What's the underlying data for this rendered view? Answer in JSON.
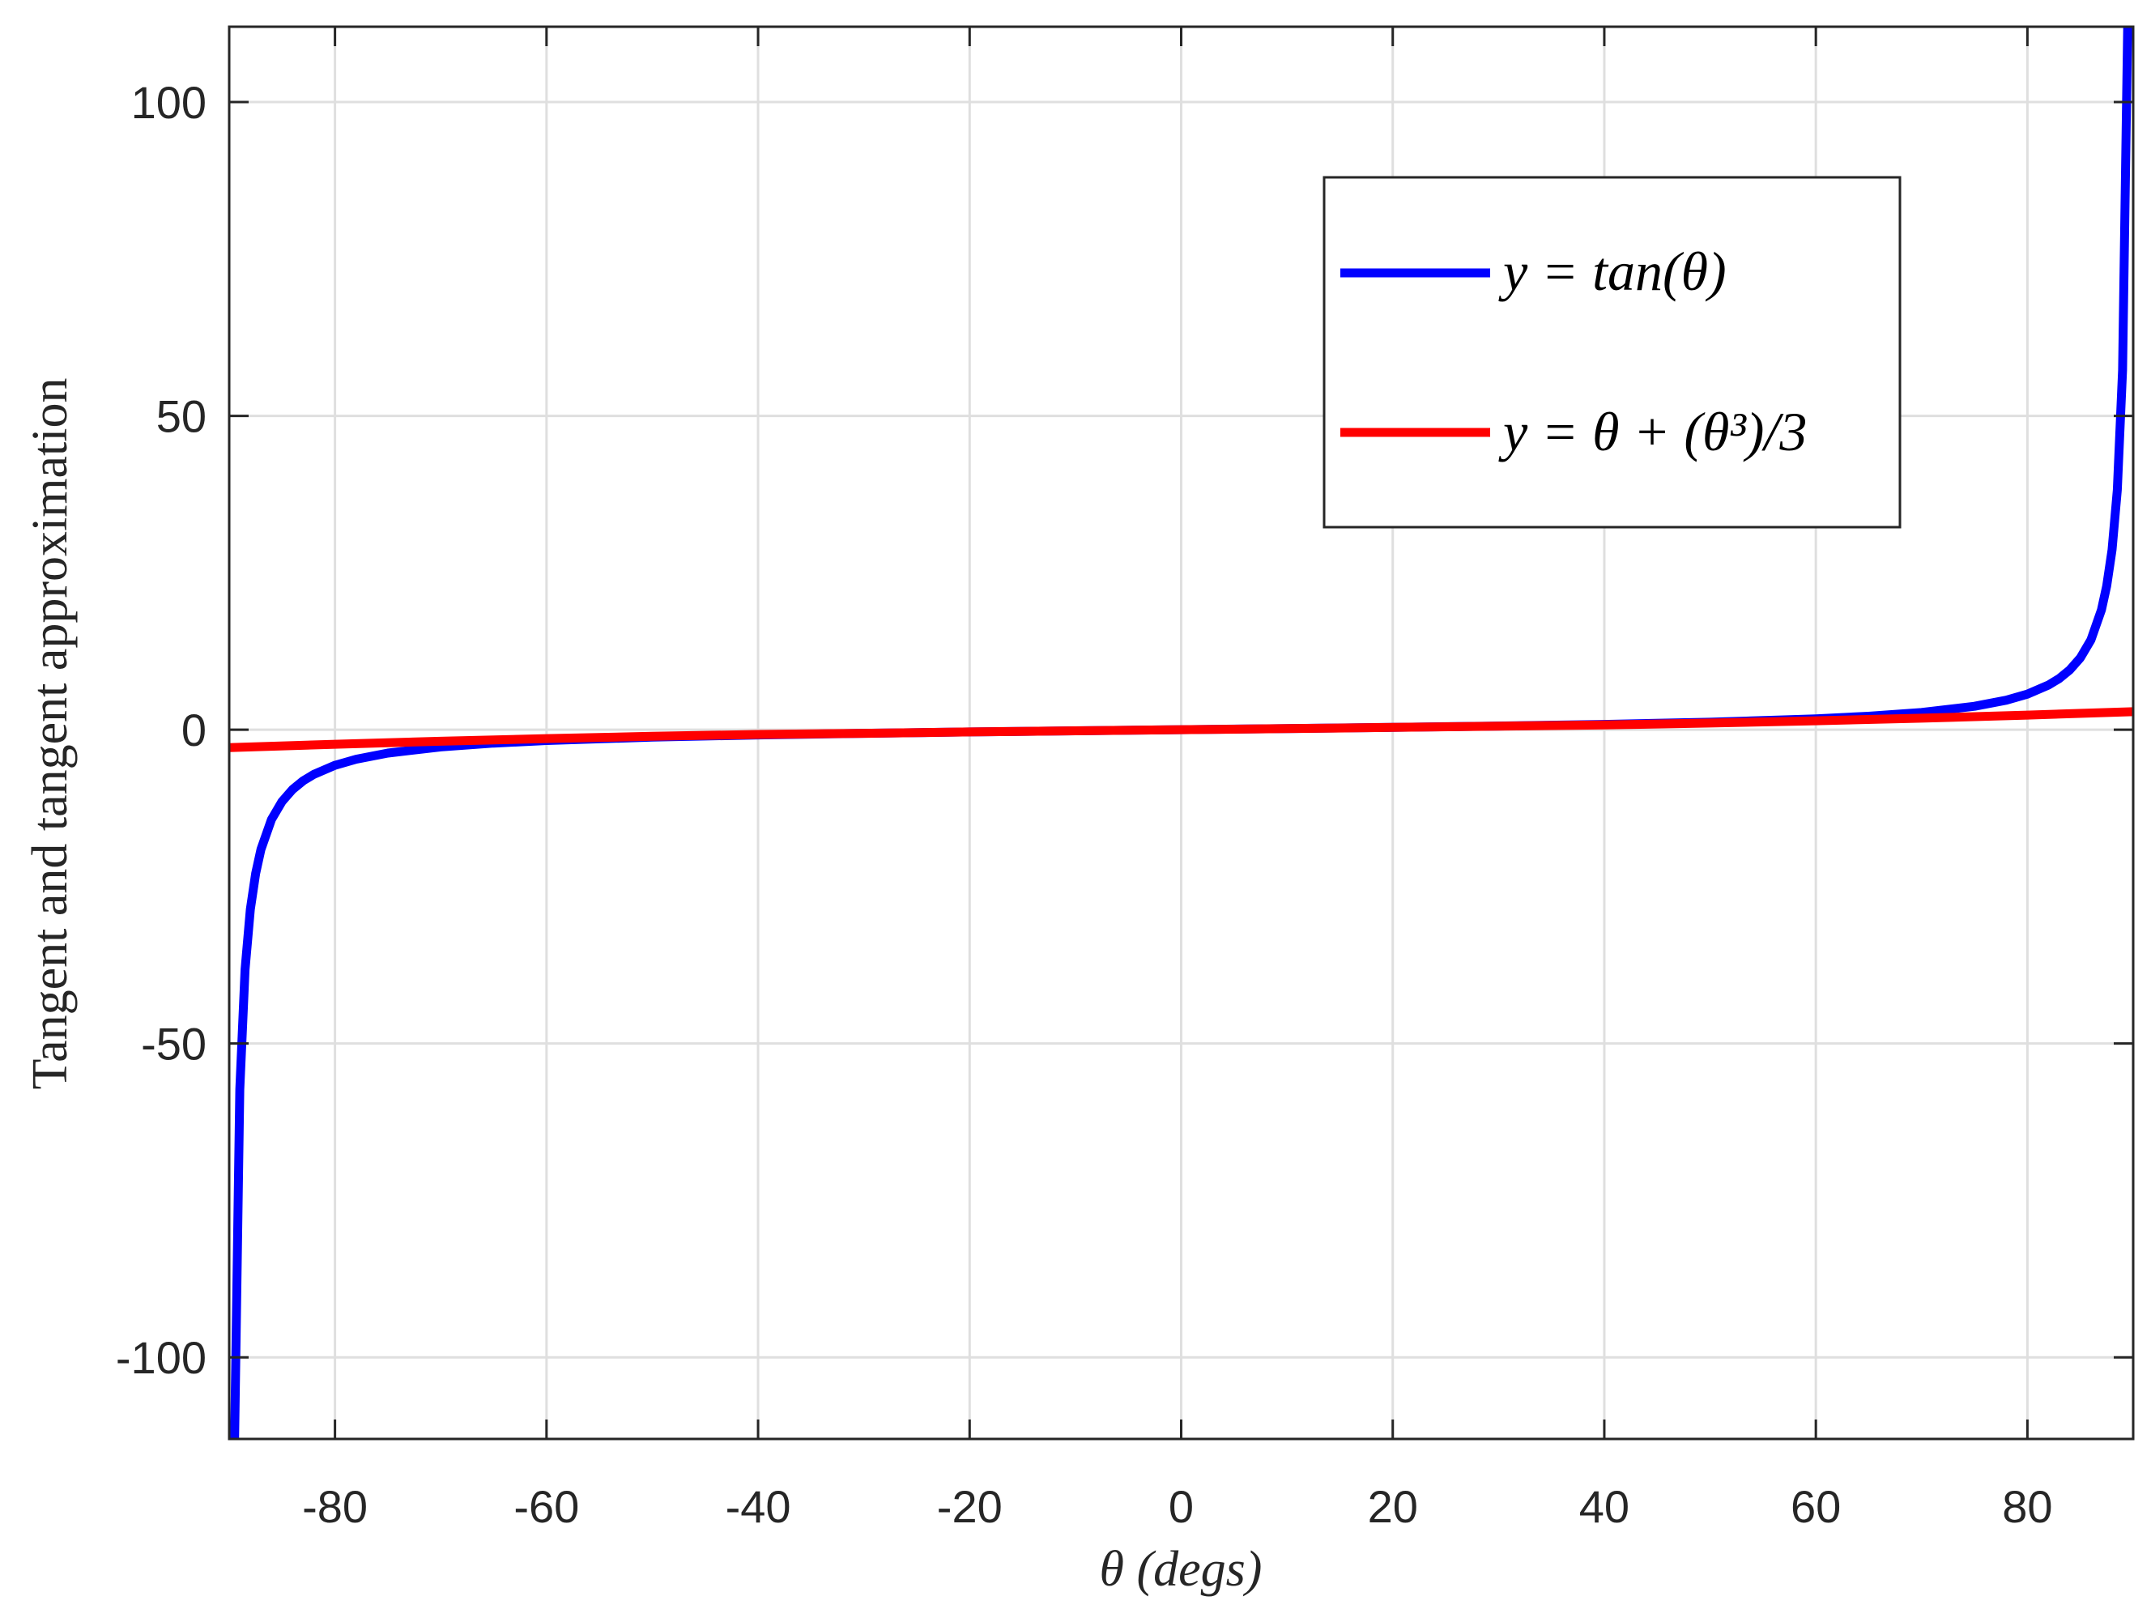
{
  "chart_data": {
    "type": "line",
    "title": "",
    "xlabel": "θ (degs)",
    "ylabel": "Tangent and tangent approximation",
    "xlim": [
      -90,
      90
    ],
    "ylim": [
      -113,
      112
    ],
    "xticks": [
      -80,
      -60,
      -40,
      -20,
      0,
      20,
      40,
      60,
      80
    ],
    "yticks": [
      -100,
      -50,
      0,
      50,
      100
    ],
    "xtick_labels": [
      "-80",
      "-60",
      "-40",
      "-20",
      "0",
      "20",
      "40",
      "60",
      "80"
    ],
    "ytick_labels": [
      "-100",
      "-50",
      "0",
      "50",
      "100"
    ],
    "grid": true,
    "legend_position": "top-right",
    "series": [
      {
        "name": "y = tan(θ)",
        "color": "#0000ff",
        "x": [
          -89.5,
          -89,
          -88.5,
          -88,
          -87.5,
          -87,
          -86,
          -85,
          -84,
          -83,
          -82,
          -80,
          -78,
          -75,
          -70,
          -65,
          -60,
          -50,
          -40,
          -30,
          -20,
          -10,
          0,
          10,
          20,
          30,
          40,
          50,
          60,
          65,
          70,
          75,
          78,
          80,
          82,
          83,
          84,
          85,
          86,
          87,
          87.5,
          88,
          88.5,
          89,
          89.5
        ],
        "y": [
          -114.59,
          -57.29,
          -38.19,
          -28.64,
          -22.9,
          -19.08,
          -14.3,
          -11.43,
          -9.51,
          -8.14,
          -7.12,
          -5.67,
          -4.7,
          -3.73,
          -2.75,
          -2.14,
          -1.73,
          -1.19,
          -0.84,
          -0.58,
          -0.36,
          -0.18,
          0,
          0.18,
          0.36,
          0.58,
          0.84,
          1.19,
          1.73,
          2.14,
          2.75,
          3.73,
          4.7,
          5.67,
          7.12,
          8.14,
          9.51,
          11.43,
          14.3,
          19.08,
          22.9,
          28.64,
          38.19,
          57.29,
          114.59
        ]
      },
      {
        "name": "y = θ + (θ³)/3",
        "color": "#ff0000",
        "x": [
          -90,
          -80,
          -70,
          -60,
          -50,
          -40,
          -30,
          -20,
          -10,
          0,
          10,
          20,
          30,
          40,
          50,
          60,
          70,
          80,
          90
        ],
        "y": [
          -2.863,
          -2.322,
          -1.841,
          -1.42,
          -1.059,
          -0.757,
          -0.571,
          -0.358,
          -0.176,
          0,
          0.176,
          0.358,
          0.571,
          0.757,
          1.059,
          1.42,
          1.841,
          2.322,
          2.863
        ]
      }
    ]
  }
}
